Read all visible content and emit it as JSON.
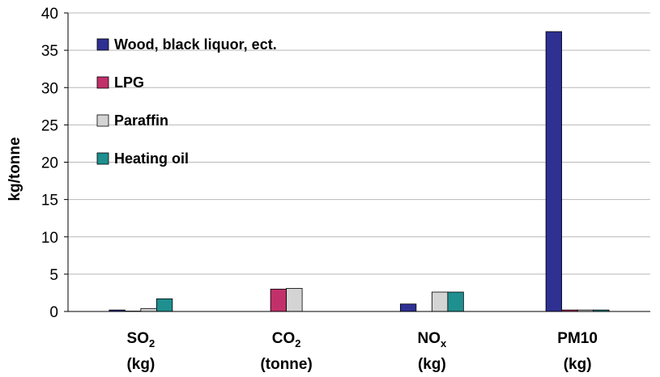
{
  "chart_data": {
    "type": "bar",
    "title": "",
    "xlabel": "",
    "ylabel": "kg/tonne",
    "ylim": [
      0,
      40
    ],
    "yticks": [
      0,
      5,
      10,
      15,
      20,
      25,
      30,
      35,
      40
    ],
    "grid": true,
    "legend_position": "top-left",
    "categories": [
      {
        "main": "SO",
        "sub": "2",
        "unit": "(kg)"
      },
      {
        "main": "CO",
        "sub": "2",
        "unit": "(tonne)"
      },
      {
        "main": "NO",
        "sub": "x",
        "unit": "(kg)"
      },
      {
        "main": "PM10",
        "sub": "",
        "unit": "(kg)"
      }
    ],
    "series": [
      {
        "name": "Wood, black liquor, ect.",
        "color": "#2e3192",
        "values": [
          0.2,
          0,
          1.0,
          37.5
        ]
      },
      {
        "name": "LPG",
        "color": "#c2306a",
        "values": [
          0.05,
          3.0,
          0,
          0.2
        ]
      },
      {
        "name": "Paraffin",
        "color": "#d4d4d4",
        "values": [
          0.4,
          3.1,
          2.6,
          0.2
        ]
      },
      {
        "name": "Heating oil",
        "color": "#1f8f8f",
        "values": [
          1.7,
          0,
          2.6,
          0.2
        ]
      }
    ]
  }
}
